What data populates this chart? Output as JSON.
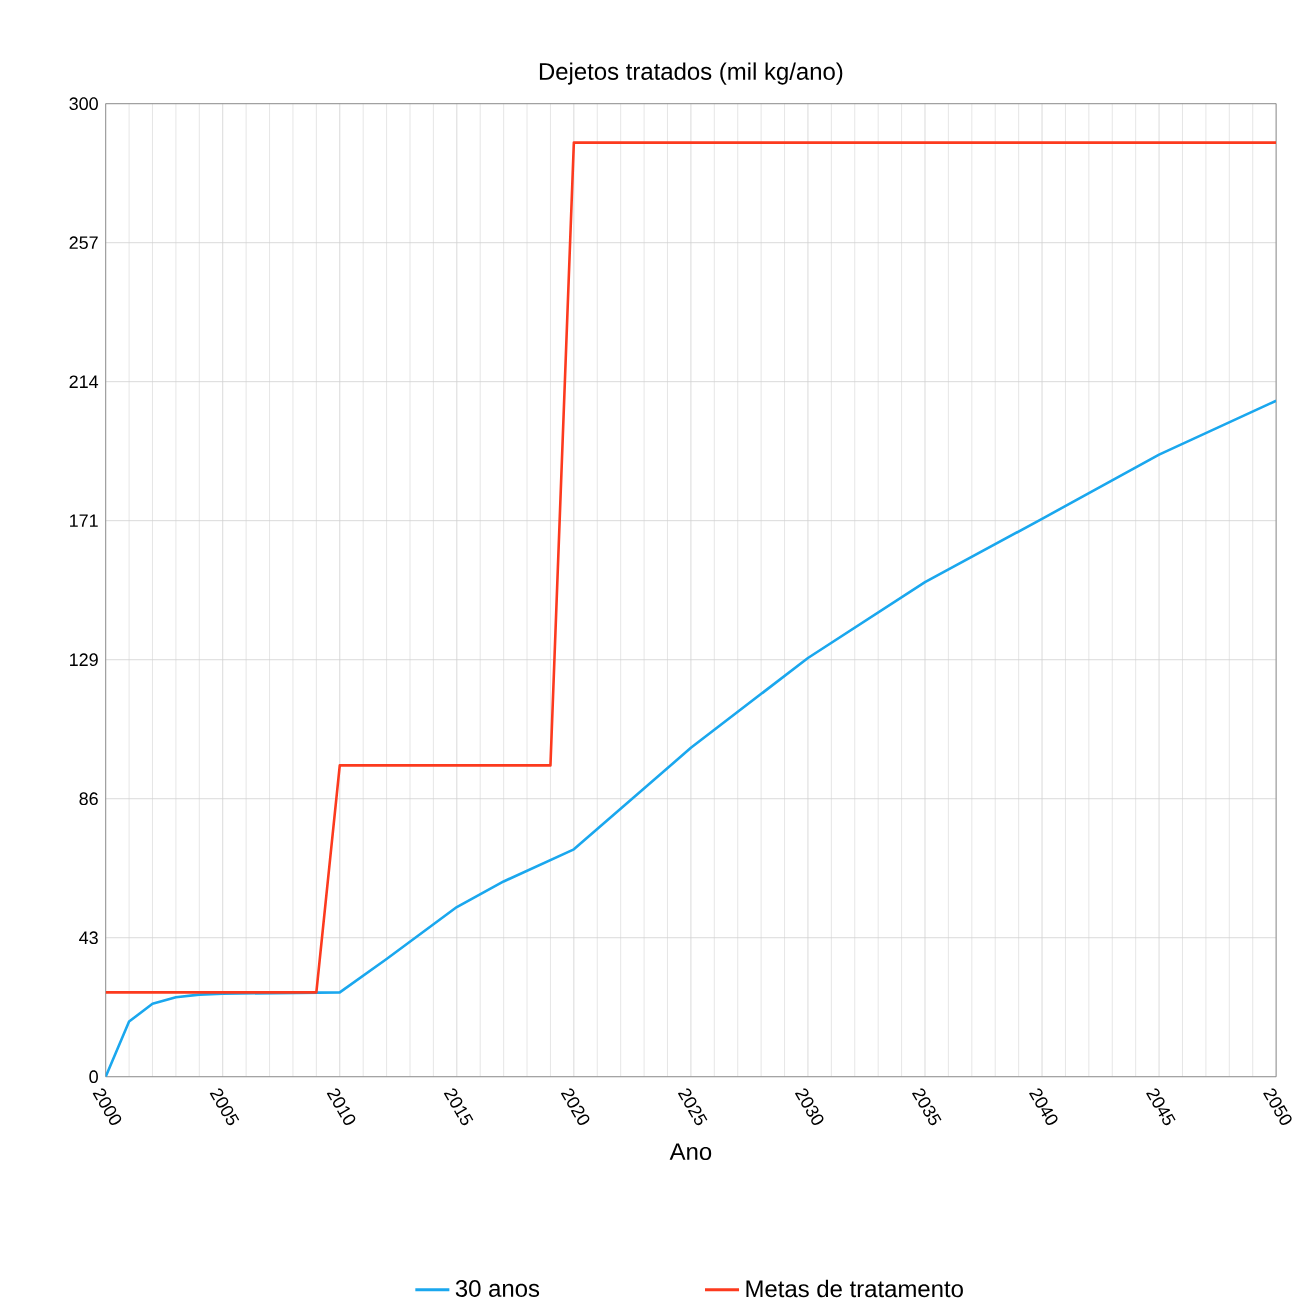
{
  "chart_data": {
    "type": "line",
    "title": "Dejetos tratados (mil kg/ano)",
    "xlabel": "Ano",
    "xlim": [
      2000,
      2050
    ],
    "xticks": [
      2000,
      2005,
      2010,
      2015,
      2020,
      2025,
      2030,
      2035,
      2040,
      2045,
      2050
    ],
    "ylim": [
      0,
      300
    ],
    "yticks": [
      0,
      {
        "value": 42.86,
        "label": "43"
      },
      {
        "value": 85.71,
        "label": "86"
      },
      {
        "value": 128.57,
        "label": "129"
      },
      {
        "value": 171.43,
        "label": "171"
      },
      {
        "value": 214.29,
        "label": "214"
      },
      {
        "value": 257.14,
        "label": "257"
      },
      300
    ],
    "grid": true,
    "legend": "bottom",
    "marker": "none",
    "line_style": "solid",
    "series": [
      {
        "name": "30 anos",
        "color": "#1aa7ee",
        "x": [
          2000,
          2001,
          2002,
          2003,
          2004,
          2005,
          2010,
          2012,
          2015,
          2017,
          2020,
          2025,
          2030,
          2035,
          2040,
          2045,
          2050
        ],
        "values": [
          0,
          17,
          22.5,
          24.5,
          25.3,
          25.6,
          26,
          36.3,
          52.3,
          60.2,
          70.1,
          101.4,
          129.1,
          152.5,
          172,
          191.8,
          208.4
        ]
      },
      {
        "name": "Metas de tratamento",
        "color": "#fc3a1e",
        "x": [
          2000,
          2009,
          2010,
          2019,
          2020,
          2050
        ],
        "values": [
          26,
          26,
          96,
          96,
          288,
          288
        ]
      }
    ]
  }
}
